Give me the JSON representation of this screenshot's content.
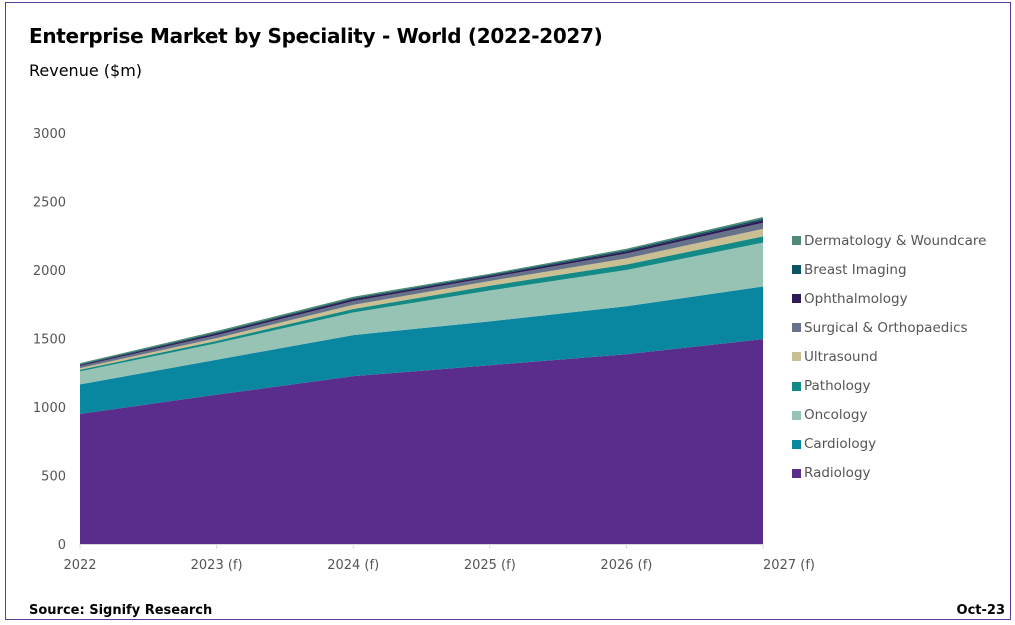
{
  "frame_color": "#5c3d99",
  "header": {
    "title": "Enterprise Market by Speciality - World (2022-2027)",
    "subtitle": "Revenue ($m)"
  },
  "footer": {
    "source": "Source: Signify Research",
    "date": "Oct-23"
  },
  "chart_data": {
    "type": "area",
    "stacked": true,
    "title": "Enterprise Market by Speciality - World (2022-2027)",
    "ylabel": "Revenue ($m)",
    "xlabel": "",
    "categories": [
      "2022",
      "2023 (f)",
      "2024 (f)",
      "2025 (f)",
      "2026 (f)",
      "2027 (f)"
    ],
    "ylim": [
      0,
      3000
    ],
    "yticks": [
      0,
      500,
      1000,
      1500,
      2000,
      2500,
      3000
    ],
    "grid": false,
    "legend_position": "right",
    "series": [
      {
        "name": "Radiology",
        "color": "#5a2d8c",
        "values": [
          950,
          1090,
          1225,
          1305,
          1385,
          1495
        ]
      },
      {
        "name": "Cardiology",
        "color": "#0a87a0",
        "values": [
          215,
          255,
          300,
          320,
          350,
          385
        ]
      },
      {
        "name": "Oncology",
        "color": "#97c3b5",
        "values": [
          95,
          120,
          165,
          225,
          265,
          320
        ]
      },
      {
        "name": "Pathology",
        "color": "#138a85",
        "values": [
          12,
          18,
          25,
          35,
          40,
          45
        ]
      },
      {
        "name": "Ultrasound",
        "color": "#c9bf93",
        "values": [
          12,
          20,
          30,
          35,
          45,
          55
        ]
      },
      {
        "name": "Surgical & Orthopaedics",
        "color": "#66718a",
        "values": [
          15,
          22,
          28,
          25,
          35,
          45
        ]
      },
      {
        "name": "Ophthalmology",
        "color": "#2e1a54",
        "values": [
          8,
          12,
          14,
          12,
          15,
          18
        ]
      },
      {
        "name": "Breast Imaging",
        "color": "#0e5563",
        "values": [
          5,
          8,
          8,
          8,
          10,
          12
        ]
      },
      {
        "name": "Dermatology & Woundcare",
        "color": "#4e8b72",
        "values": [
          8,
          10,
          10,
          8,
          10,
          12
        ]
      }
    ]
  }
}
